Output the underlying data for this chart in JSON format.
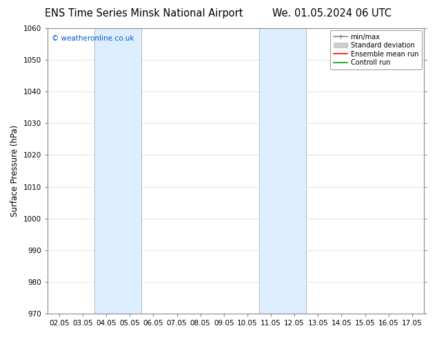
{
  "title_left": "ENS Time Series Minsk National Airport",
  "title_right": "We. 01.05.2024 06 UTC",
  "ylabel": "Surface Pressure (hPa)",
  "ylim": [
    970,
    1060
  ],
  "yticks": [
    970,
    980,
    990,
    1000,
    1010,
    1020,
    1030,
    1040,
    1050,
    1060
  ],
  "xtick_labels": [
    "02.05",
    "03.05",
    "04.05",
    "05.05",
    "06.05",
    "07.05",
    "08.05",
    "09.05",
    "10.05",
    "11.05",
    "12.05",
    "13.05",
    "14.05",
    "15.05",
    "16.05",
    "17.05"
  ],
  "shade_bands": [
    {
      "xcenter": "04.05",
      "xwidth": 0.5
    },
    {
      "xcenter": "05.05",
      "xwidth": 0.5
    },
    {
      "xcenter": "11.05",
      "xwidth": 0.5
    },
    {
      "xcenter": "12.05",
      "xwidth": 0.5
    }
  ],
  "shade_color": "#ddeeff",
  "copyright_text": "© weatheronline.co.uk",
  "copyright_color": "#0055cc",
  "legend_items": [
    {
      "label": "min/max",
      "color": "#888888",
      "lw": 1.2,
      "type": "line"
    },
    {
      "label": "Standard deviation",
      "color": "#cccccc",
      "lw": 6,
      "type": "patch"
    },
    {
      "label": "Ensemble mean run",
      "color": "#ff0000",
      "lw": 1.2,
      "type": "line"
    },
    {
      "label": "Controll run",
      "color": "#009900",
      "lw": 1.2,
      "type": "line"
    }
  ],
  "bg_color": "#ffffff",
  "grid_color": "#dddddd",
  "title_fontsize": 10.5,
  "axis_fontsize": 8.5,
  "tick_fontsize": 7.5,
  "fig_width": 6.34,
  "fig_height": 4.9,
  "dpi": 100
}
